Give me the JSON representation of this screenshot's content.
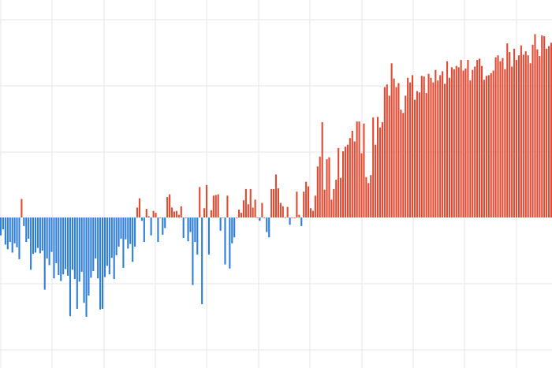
{
  "chart_data": {
    "type": "bar",
    "title": "",
    "xlabel": "",
    "ylabel": "",
    "grid": true,
    "legend": "none",
    "ylim": [
      -2.3,
      3.3
    ],
    "colors": {
      "positive": "#e34a33",
      "negative": "#2f7ed8",
      "grid": "#e6e6e6"
    },
    "values": [
      -0.27,
      -0.18,
      -0.41,
      -0.48,
      -0.37,
      -0.53,
      -0.39,
      -0.45,
      -0.63,
      0.28,
      -0.13,
      -0.37,
      -0.32,
      -0.79,
      -0.55,
      -0.53,
      -0.46,
      -0.54,
      -0.5,
      -1.09,
      -0.62,
      -0.72,
      -0.52,
      -0.92,
      -0.69,
      -0.87,
      -0.96,
      -0.86,
      -0.78,
      -0.88,
      -1.49,
      -0.79,
      -0.93,
      -1.38,
      -0.97,
      -0.82,
      -1.29,
      -1.5,
      -1.18,
      -0.91,
      -0.81,
      -0.62,
      -0.92,
      -1.39,
      -1.38,
      -0.9,
      -0.73,
      -0.86,
      -0.61,
      -0.93,
      -0.57,
      -0.44,
      -0.32,
      -0.76,
      -0.33,
      -0.47,
      -0.4,
      -0.67,
      -0.44,
      0.15,
      0.29,
      -0.05,
      -0.37,
      0.13,
      0.02,
      -0.27,
      0.1,
      0.07,
      -0.37,
      0.0,
      -0.26,
      -0.16,
      0.31,
      0.35,
      0.15,
      0.09,
      0.1,
      0.04,
      0.17,
      -0.31,
      0.0,
      -0.36,
      -0.22,
      -1.02,
      -0.37,
      -0.56,
      0.46,
      -1.31,
      0.14,
      0.49,
      -0.56,
      0.11,
      0.33,
      0.34,
      0.35,
      -0.2,
      0.0,
      -0.71,
      0.33,
      -0.77,
      -0.39,
      -0.3,
      0.0,
      0.12,
      0.07,
      0.26,
      0.43,
      0.2,
      0.43,
      0.15,
      0.27,
      0.0,
      -0.05,
      0.22,
      0.0,
      -0.22,
      -0.3,
      0.43,
      0.43,
      0.65,
      0.44,
      0.22,
      0.17,
      0.0,
      0.16,
      -0.11,
      0.0,
      0.0,
      0.39,
      0.04,
      -0.13,
      0.39,
      0.54,
      0.47,
      0.14,
      0.1,
      0.33,
      0.77,
      0.92,
      1.44,
      0.42,
      0.88,
      0.91,
      0.27,
      0.43,
      0.57,
      1.05,
      0.6,
      1.0,
      1.07,
      1.1,
      1.2,
      1.31,
      1.15,
      1.45,
      1.45,
      0.97,
      1.42,
      0.61,
      0.52,
      0.64,
      1.51,
      1.1,
      1.52,
      1.36,
      1.44,
      1.97,
      2.01,
      1.84,
      2.33,
      2.1,
      1.97,
      2.03,
      1.63,
      1.58,
      1.84,
      2.11,
      2.04,
      2.15,
      1.78,
      1.91,
      1.89,
      2.14,
      2.13,
      1.88,
      2.17,
      2.11,
      2.04,
      2.23,
      2.07,
      2.15,
      2.21,
      2.02,
      2.36,
      2.11,
      2.27,
      2.24,
      2.29,
      2.27,
      2.38,
      2.22,
      2.25,
      2.38,
      2.07,
      2.23,
      2.28,
      2.38,
      2.4,
      2.29,
      2.08,
      2.14,
      2.15,
      2.18,
      2.22,
      2.42,
      2.45,
      2.36,
      2.41,
      2.24,
      2.63,
      2.5,
      2.28,
      2.55,
      2.38,
      2.45,
      2.6,
      2.46,
      2.51,
      2.45,
      2.33,
      2.61,
      2.77,
      2.54,
      2.44,
      2.75,
      2.74,
      2.55,
      2.59,
      2.64
    ]
  }
}
